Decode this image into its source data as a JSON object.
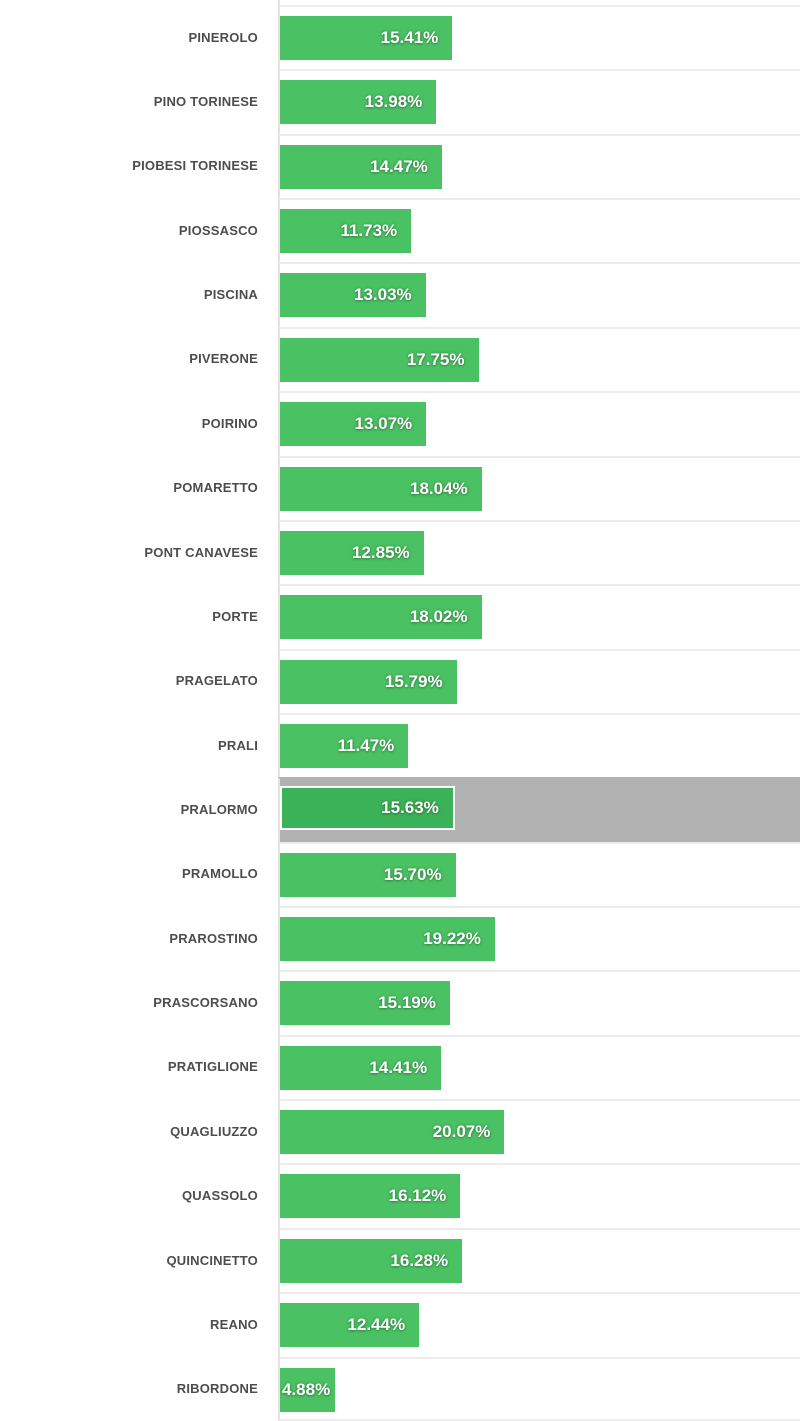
{
  "chart_data": {
    "type": "bar",
    "orientation": "horizontal",
    "title": "",
    "xlabel": "",
    "ylabel": "",
    "categories": [
      "PINEROLO",
      "PINO TORINESE",
      "PIOBESI TORINESE",
      "PIOSSASCO",
      "PISCINA",
      "PIVERONE",
      "POIRINO",
      "POMARETTO",
      "PONT CANAVESE",
      "PORTE",
      "PRAGELATO",
      "PRALI",
      "PRALORMO",
      "PRAMOLLO",
      "PRAROSTINO",
      "PRASCORSANO",
      "PRATIGLIONE",
      "QUAGLIUZZO",
      "QUASSOLO",
      "QUINCINETTO",
      "REANO",
      "RIBORDONE"
    ],
    "values": [
      15.41,
      13.98,
      14.47,
      11.73,
      13.03,
      17.75,
      13.07,
      18.04,
      12.85,
      18.02,
      15.79,
      11.47,
      15.63,
      15.7,
      19.22,
      15.19,
      14.41,
      20.07,
      16.12,
      16.28,
      12.44,
      4.88
    ],
    "value_labels": [
      "15.41%",
      "13.98%",
      "14.47%",
      "11.73%",
      "13.03%",
      "17.75%",
      "13.07%",
      "18.04%",
      "12.85%",
      "18.02%",
      "15.79%",
      "11.47%",
      "15.63%",
      "15.70%",
      "19.22%",
      "15.19%",
      "14.41%",
      "20.07%",
      "16.12%",
      "16.28%",
      "12.44%",
      "4.88%"
    ],
    "highlighted_category": "PRALORMO",
    "highlighted_index": 12,
    "xlim": [
      0,
      46.5
    ],
    "grid": true,
    "legend": false,
    "colors": {
      "bar": "#4ac163",
      "bar_highlighted": "#3bb257",
      "highlight_band": "#b1b1b1",
      "grid_line": "#ececec",
      "axis_line": "#e3e3e3",
      "category_text": "#4d4d4d",
      "value_text": "#ffffff",
      "background": "#ffffff"
    }
  }
}
